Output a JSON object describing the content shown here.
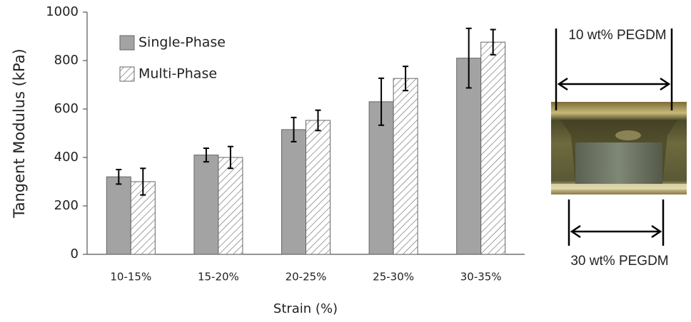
{
  "chart_data": {
    "type": "bar",
    "y_label": "Tangent Modulus (kPa)",
    "x_label": "Strain (%)",
    "categories": [
      "10-15%",
      "15-20%",
      "20-25%",
      "25-30%",
      "30-35%"
    ],
    "series": [
      {
        "name": "Single-Phase",
        "color": "#a3a3a3",
        "hatch": false,
        "values": [
          320,
          410,
          515,
          630,
          810
        ],
        "errors": [
          30,
          28,
          50,
          97,
          123
        ]
      },
      {
        "name": "Multi-Phase",
        "color": "#ffffff",
        "hatch": true,
        "values": [
          300,
          400,
          553,
          726,
          876
        ],
        "errors": [
          55,
          45,
          42,
          50,
          52
        ]
      }
    ],
    "ylim": [
      0,
      1000
    ],
    "yticks": [
      0,
      200,
      400,
      600,
      800,
      1000
    ],
    "grid": false,
    "legend": "upper left",
    "annotations": [
      "10 wt% PEGDM",
      "30 wt% PEGDM"
    ]
  }
}
